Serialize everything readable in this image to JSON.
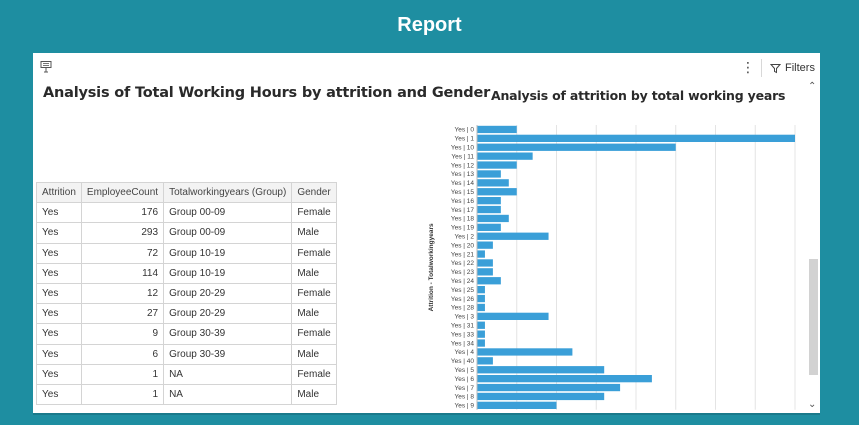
{
  "header": {
    "title": "Report"
  },
  "toolbar": {
    "more_label": "⋮",
    "filters_label": "Filters"
  },
  "viz1": {
    "title": "Analysis of Total Working Hours by attrition and Gender",
    "columns": [
      "Attrition",
      "EmployeeCount",
      "Totalworkingyears (Group)",
      "Gender"
    ],
    "rows": [
      [
        "Yes",
        "176",
        "Group 00-09",
        "Female"
      ],
      [
        "Yes",
        "293",
        "Group 00-09",
        "Male"
      ],
      [
        "Yes",
        "72",
        "Group 10-19",
        "Female"
      ],
      [
        "Yes",
        "114",
        "Group 10-19",
        "Male"
      ],
      [
        "Yes",
        "12",
        "Group 20-29",
        "Female"
      ],
      [
        "Yes",
        "27",
        "Group 20-29",
        "Male"
      ],
      [
        "Yes",
        "9",
        "Group 30-39",
        "Female"
      ],
      [
        "Yes",
        "6",
        "Group 30-39",
        "Male"
      ],
      [
        "Yes",
        "1",
        "NA",
        "Female"
      ],
      [
        "Yes",
        "1",
        "NA",
        "Male"
      ]
    ]
  },
  "viz2": {
    "title": "Analysis of attrition by total working years"
  },
  "chart_data": {
    "type": "bar",
    "orientation": "horizontal",
    "ylabel": "Attrition - Totalworkingyears",
    "xlabel": "",
    "bar_color": "#3a9fd8",
    "grid": true,
    "xlim": [
      0,
      40
    ],
    "categories": [
      "Yes | 0",
      "Yes | 1",
      "Yes | 10",
      "Yes | 11",
      "Yes | 12",
      "Yes | 13",
      "Yes | 14",
      "Yes | 15",
      "Yes | 16",
      "Yes | 17",
      "Yes | 18",
      "Yes | 19",
      "Yes | 2",
      "Yes | 20",
      "Yes | 21",
      "Yes | 22",
      "Yes | 23",
      "Yes | 24",
      "Yes | 25",
      "Yes | 26",
      "Yes | 28",
      "Yes | 3",
      "Yes | 31",
      "Yes | 33",
      "Yes | 34",
      "Yes | 4",
      "Yes | 40",
      "Yes | 5",
      "Yes | 6",
      "Yes | 7",
      "Yes | 8",
      "Yes | 9"
    ],
    "values": [
      5,
      40,
      25,
      7,
      5,
      3,
      4,
      5,
      3,
      3,
      4,
      3,
      9,
      2,
      1,
      2,
      2,
      3,
      1,
      1,
      1,
      9,
      1,
      1,
      1,
      12,
      2,
      16,
      22,
      18,
      16,
      10
    ]
  },
  "colors": {
    "header_bg": "#1e8ea1",
    "bar": "#3a9fd8"
  },
  "icons": {
    "toolbar_left": "presentation-icon",
    "filters": "filter-icon",
    "more": "more-vertical-icon"
  }
}
